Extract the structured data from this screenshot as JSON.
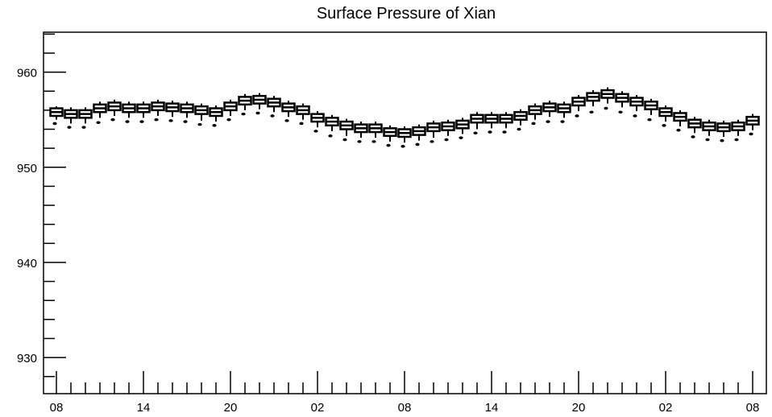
{
  "chart_data": {
    "type": "boxplot",
    "title": "Surface Pressure of Xian",
    "xlabel": "",
    "ylabel": "",
    "ylim": [
      926.2,
      964.2
    ],
    "yticks": [
      930,
      940,
      950,
      960
    ],
    "x_tick_labels": [
      "08",
      "14",
      "20",
      "02",
      "08",
      "14",
      "20",
      "02",
      "08"
    ],
    "x_tick_hours": [
      0,
      6,
      12,
      18,
      24,
      30,
      36,
      42,
      48
    ],
    "x_step_hours": 1,
    "grid": false,
    "series": [
      {
        "x_hours": [
          0,
          1,
          2,
          3,
          4,
          5,
          6,
          7,
          8,
          9,
          10,
          11,
          12,
          13,
          14,
          15,
          16,
          17,
          18,
          19,
          20,
          21,
          22,
          23,
          24,
          25,
          26,
          27,
          28,
          29,
          30,
          31,
          32,
          33,
          34,
          35,
          36,
          37,
          38,
          39,
          40,
          41,
          42,
          43,
          44,
          45,
          46,
          47,
          48
        ],
        "median": [
          955.8,
          955.6,
          955.6,
          956.2,
          956.4,
          956.2,
          956.2,
          956.4,
          956.3,
          956.2,
          956.0,
          955.8,
          956.4,
          957.0,
          957.1,
          956.8,
          956.3,
          956.0,
          955.2,
          954.8,
          954.4,
          954.1,
          954.1,
          953.7,
          953.6,
          953.8,
          954.2,
          954.3,
          954.5,
          955.1,
          955.1,
          955.1,
          955.4,
          956.0,
          956.3,
          956.2,
          956.9,
          957.4,
          957.7,
          957.3,
          956.9,
          956.5,
          955.8,
          955.3,
          954.6,
          954.3,
          954.2,
          954.3,
          954.9
        ],
        "q1": [
          955.4,
          955.2,
          955.2,
          955.8,
          956.0,
          955.8,
          955.8,
          956.0,
          955.9,
          955.8,
          955.6,
          955.4,
          956.0,
          956.6,
          956.7,
          956.4,
          955.9,
          955.6,
          954.8,
          954.4,
          954.0,
          953.7,
          953.7,
          953.3,
          953.2,
          953.4,
          953.8,
          953.9,
          954.1,
          954.7,
          954.7,
          954.7,
          955.0,
          955.6,
          955.9,
          955.8,
          956.5,
          957.0,
          957.3,
          956.9,
          956.5,
          956.1,
          955.4,
          954.9,
          954.2,
          953.9,
          953.8,
          953.9,
          954.5
        ],
        "q3": [
          956.2,
          956.0,
          956.0,
          956.6,
          956.8,
          956.6,
          956.6,
          956.8,
          956.7,
          956.6,
          956.4,
          956.2,
          956.8,
          957.4,
          957.5,
          957.2,
          956.7,
          956.4,
          955.6,
          955.2,
          954.8,
          954.5,
          954.5,
          954.1,
          954.0,
          954.2,
          954.6,
          954.7,
          954.9,
          955.5,
          955.5,
          955.5,
          955.8,
          956.4,
          956.7,
          956.6,
          957.3,
          957.8,
          958.1,
          957.7,
          957.3,
          956.9,
          956.2,
          955.7,
          955.0,
          954.7,
          954.6,
          954.7,
          955.3
        ],
        "whisker_low": [
          955.0,
          954.6,
          954.6,
          955.2,
          955.4,
          955.2,
          955.2,
          955.4,
          955.3,
          955.2,
          954.9,
          954.8,
          955.4,
          956.0,
          956.1,
          955.8,
          955.3,
          955.0,
          954.2,
          953.8,
          953.3,
          953.1,
          953.1,
          952.7,
          952.6,
          952.8,
          953.1,
          953.3,
          953.5,
          954.0,
          954.1,
          954.1,
          954.4,
          955.0,
          955.3,
          955.2,
          955.9,
          956.4,
          956.7,
          956.3,
          955.9,
          955.5,
          954.8,
          954.3,
          953.6,
          953.3,
          953.2,
          953.3,
          953.9
        ],
        "whisker_high": [
          956.4,
          956.3,
          956.3,
          956.9,
          957.1,
          956.9,
          956.9,
          957.1,
          957.0,
          956.9,
          956.7,
          956.5,
          957.1,
          957.7,
          957.8,
          957.5,
          957.0,
          956.7,
          955.9,
          955.5,
          955.1,
          954.8,
          954.8,
          954.4,
          954.3,
          954.5,
          954.9,
          955.0,
          955.2,
          955.8,
          955.8,
          955.8,
          956.1,
          956.7,
          957.0,
          956.9,
          957.6,
          958.1,
          958.4,
          958.0,
          957.6,
          957.2,
          956.5,
          956.0,
          955.3,
          955.0,
          954.9,
          955.0,
          955.6
        ],
        "outlier": [
          954.6,
          954.2,
          954.2,
          954.7,
          955.0,
          954.8,
          954.8,
          955.0,
          954.9,
          954.8,
          954.5,
          954.4,
          955.0,
          955.6,
          955.7,
          955.4,
          954.9,
          954.6,
          953.8,
          953.3,
          952.9,
          952.7,
          952.7,
          952.3,
          952.2,
          952.4,
          952.7,
          952.9,
          953.1,
          953.6,
          953.7,
          953.7,
          954.0,
          954.6,
          954.8,
          954.8,
          955.4,
          955.8,
          956.2,
          955.8,
          955.4,
          955.0,
          954.4,
          953.9,
          953.2,
          952.9,
          952.8,
          952.9,
          953.5
        ]
      }
    ]
  }
}
